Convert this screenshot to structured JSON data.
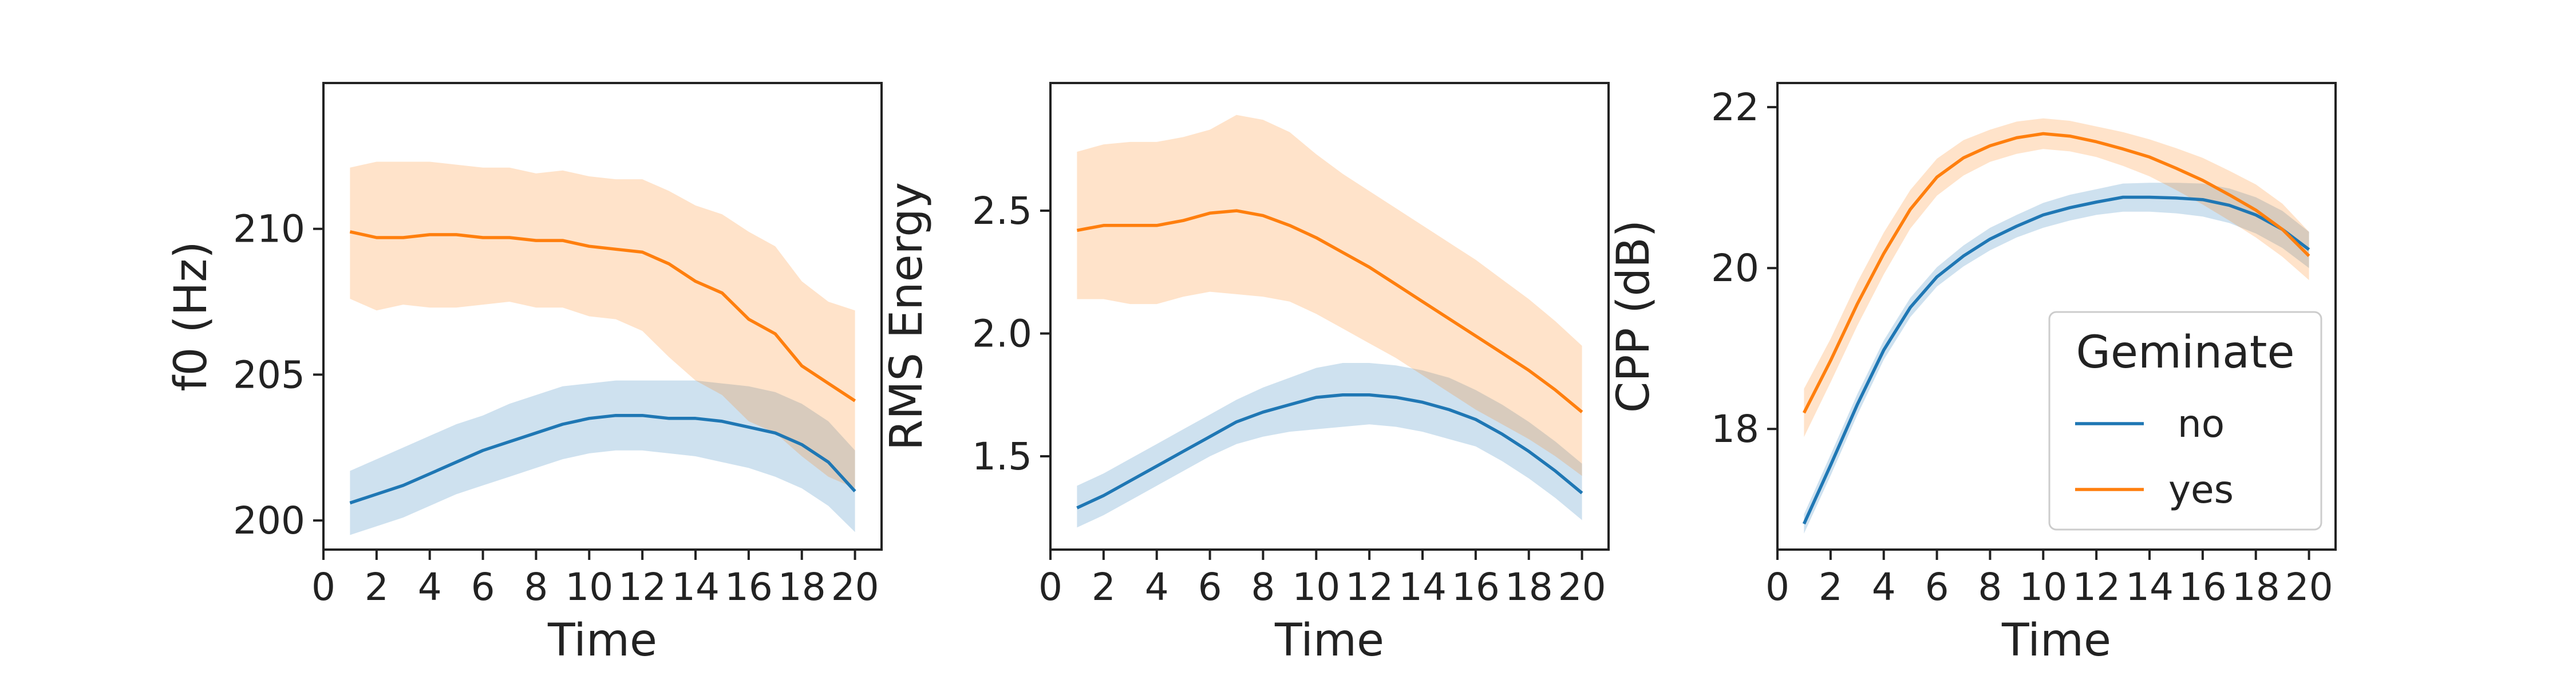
{
  "chart_data": [
    {
      "type": "line",
      "xlabel": "Time",
      "ylabel": "f0 (Hz)",
      "xlim": [
        0,
        21
      ],
      "ylim": [
        199,
        215
      ],
      "xticks": [
        "0",
        "2",
        "4",
        "6",
        "8",
        "10",
        "12",
        "14",
        "16",
        "18",
        "20"
      ],
      "yticks": [
        "200",
        "205",
        "210"
      ],
      "x": [
        1,
        2,
        3,
        4,
        5,
        6,
        7,
        8,
        9,
        10,
        11,
        12,
        13,
        14,
        15,
        16,
        17,
        18,
        19,
        20
      ],
      "series": [
        {
          "name": "no",
          "color": "#1f77b4",
          "values": [
            200.6,
            200.9,
            201.2,
            201.6,
            202.0,
            202.4,
            202.7,
            203.0,
            203.3,
            203.5,
            203.6,
            203.6,
            203.5,
            203.5,
            203.4,
            203.2,
            203.0,
            202.6,
            202.0,
            201.0
          ],
          "lower": [
            199.5,
            199.8,
            200.1,
            200.5,
            200.9,
            201.2,
            201.5,
            201.8,
            202.1,
            202.3,
            202.4,
            202.4,
            202.3,
            202.2,
            202.0,
            201.8,
            201.5,
            201.1,
            200.5,
            199.6
          ],
          "upper": [
            201.7,
            202.1,
            202.5,
            202.9,
            203.3,
            203.6,
            204.0,
            204.3,
            204.6,
            204.7,
            204.8,
            204.8,
            204.8,
            204.8,
            204.7,
            204.6,
            204.4,
            204.0,
            203.4,
            202.4
          ]
        },
        {
          "name": "yes",
          "color": "#ff7f0e",
          "values": [
            209.9,
            209.7,
            209.7,
            209.8,
            209.8,
            209.7,
            209.7,
            209.6,
            209.6,
            209.4,
            209.3,
            209.2,
            208.8,
            208.2,
            207.8,
            206.9,
            206.4,
            205.3,
            204.7,
            204.1
          ],
          "lower": [
            207.6,
            207.2,
            207.4,
            207.3,
            207.3,
            207.4,
            207.5,
            207.3,
            207.3,
            207.0,
            206.9,
            206.5,
            205.6,
            204.8,
            204.3,
            203.4,
            203.0,
            202.2,
            201.5,
            201.1
          ],
          "upper": [
            212.1,
            212.3,
            212.3,
            212.3,
            212.2,
            212.1,
            212.1,
            211.9,
            212.0,
            211.8,
            211.7,
            211.7,
            211.3,
            210.8,
            210.5,
            209.9,
            209.4,
            208.2,
            207.5,
            207.2
          ]
        }
      ]
    },
    {
      "type": "line",
      "xlabel": "Time",
      "ylabel": "RMS Energy",
      "xlim": [
        0,
        21
      ],
      "ylim": [
        1.12,
        3.02
      ],
      "xticks": [
        "0",
        "2",
        "4",
        "6",
        "8",
        "10",
        "12",
        "14",
        "16",
        "18",
        "20"
      ],
      "yticks": [
        "1.5",
        "2.0",
        "2.5"
      ],
      "x": [
        1,
        2,
        3,
        4,
        5,
        6,
        7,
        8,
        9,
        10,
        11,
        12,
        13,
        14,
        15,
        16,
        17,
        18,
        19,
        20
      ],
      "series": [
        {
          "name": "no",
          "color": "#1f77b4",
          "values": [
            1.29,
            1.34,
            1.4,
            1.46,
            1.52,
            1.58,
            1.64,
            1.68,
            1.71,
            1.74,
            1.75,
            1.75,
            1.74,
            1.72,
            1.69,
            1.65,
            1.59,
            1.52,
            1.44,
            1.35
          ],
          "lower": [
            1.21,
            1.26,
            1.32,
            1.38,
            1.44,
            1.5,
            1.55,
            1.58,
            1.6,
            1.61,
            1.62,
            1.63,
            1.62,
            1.6,
            1.57,
            1.54,
            1.48,
            1.41,
            1.33,
            1.24
          ],
          "upper": [
            1.38,
            1.43,
            1.49,
            1.55,
            1.61,
            1.67,
            1.73,
            1.78,
            1.82,
            1.86,
            1.88,
            1.88,
            1.87,
            1.85,
            1.82,
            1.77,
            1.71,
            1.64,
            1.56,
            1.47
          ]
        },
        {
          "name": "yes",
          "color": "#ff7f0e",
          "values": [
            2.42,
            2.44,
            2.44,
            2.44,
            2.46,
            2.49,
            2.5,
            2.48,
            2.44,
            2.39,
            2.33,
            2.27,
            2.2,
            2.13,
            2.06,
            1.99,
            1.92,
            1.85,
            1.77,
            1.68
          ],
          "lower": [
            2.14,
            2.14,
            2.12,
            2.12,
            2.15,
            2.17,
            2.16,
            2.15,
            2.13,
            2.08,
            2.02,
            1.96,
            1.9,
            1.83,
            1.76,
            1.69,
            1.63,
            1.57,
            1.5,
            1.42
          ],
          "upper": [
            2.74,
            2.77,
            2.78,
            2.78,
            2.8,
            2.83,
            2.89,
            2.87,
            2.82,
            2.73,
            2.65,
            2.58,
            2.51,
            2.44,
            2.37,
            2.3,
            2.22,
            2.14,
            2.05,
            1.95
          ]
        }
      ]
    },
    {
      "type": "line",
      "xlabel": "Time",
      "ylabel": "CPP (dB)",
      "xlim": [
        0,
        21
      ],
      "ylim": [
        16.5,
        22.3
      ],
      "xticks": [
        "0",
        "2",
        "4",
        "6",
        "8",
        "10",
        "12",
        "14",
        "16",
        "18",
        "20"
      ],
      "yticks": [
        "18",
        "20",
        "22"
      ],
      "x": [
        1,
        2,
        3,
        4,
        5,
        6,
        7,
        8,
        9,
        10,
        11,
        12,
        13,
        14,
        15,
        16,
        17,
        18,
        19,
        20
      ],
      "legend": {
        "title": "Geminate",
        "placement": "lower-right"
      },
      "series": [
        {
          "name": "no",
          "color": "#1f77b4",
          "values": [
            16.82,
            17.55,
            18.3,
            18.98,
            19.51,
            19.89,
            20.15,
            20.36,
            20.52,
            20.66,
            20.75,
            20.82,
            20.88,
            20.88,
            20.87,
            20.85,
            20.78,
            20.66,
            20.48,
            20.23
          ],
          "lower": [
            16.7,
            17.42,
            18.17,
            18.86,
            19.39,
            19.77,
            20.02,
            20.22,
            20.38,
            20.5,
            20.59,
            20.66,
            20.7,
            20.7,
            20.68,
            20.64,
            20.56,
            20.43,
            20.25,
            20.0
          ],
          "upper": [
            16.94,
            17.68,
            18.43,
            19.1,
            19.63,
            20.01,
            20.28,
            20.5,
            20.66,
            20.81,
            20.91,
            20.98,
            21.05,
            21.06,
            21.06,
            21.05,
            20.99,
            20.88,
            20.71,
            20.45
          ]
        },
        {
          "name": "yes",
          "color": "#ff7f0e",
          "values": [
            18.2,
            18.85,
            19.55,
            20.18,
            20.73,
            21.13,
            21.37,
            21.52,
            21.62,
            21.67,
            21.64,
            21.57,
            21.48,
            21.38,
            21.24,
            21.09,
            20.91,
            20.72,
            20.48,
            20.15
          ],
          "lower": [
            17.9,
            18.58,
            19.28,
            19.92,
            20.49,
            20.9,
            21.15,
            21.32,
            21.42,
            21.48,
            21.45,
            21.38,
            21.27,
            21.14,
            20.97,
            20.79,
            20.59,
            20.38,
            20.14,
            19.85
          ],
          "upper": [
            18.5,
            19.12,
            19.82,
            20.44,
            20.97,
            21.36,
            21.59,
            21.72,
            21.82,
            21.86,
            21.83,
            21.76,
            21.69,
            21.6,
            21.49,
            21.37,
            21.21,
            21.04,
            20.8,
            20.45
          ]
        }
      ]
    }
  ]
}
